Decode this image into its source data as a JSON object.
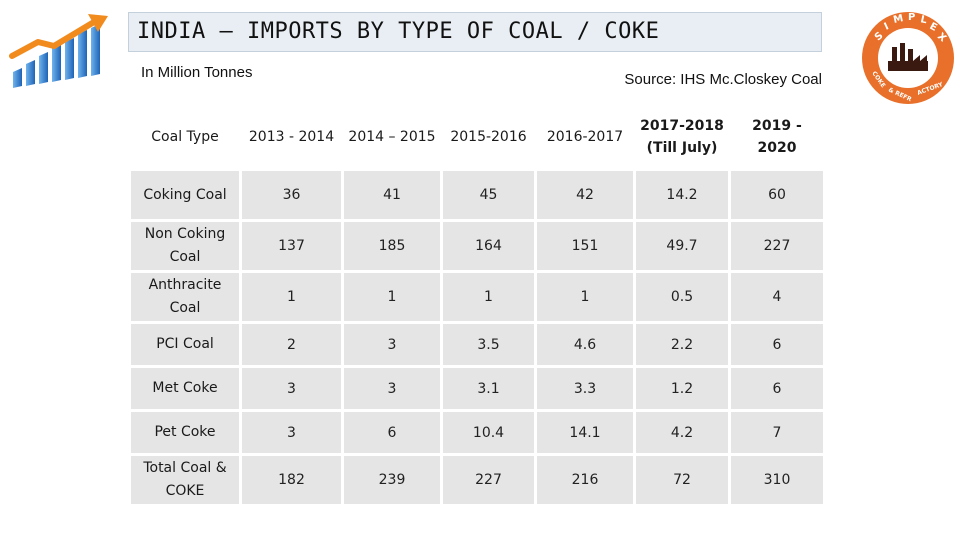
{
  "header": {
    "title": "INDIA – IMPORTS BY TYPE OF COAL / COKE",
    "unit": "In Million Tonnes",
    "source": "Source: IHS Mc.Closkey Coal"
  },
  "logo": {
    "brand_letters": "SIMPLEX",
    "tagline": "COKE & REFRACTORY",
    "color": "#e8702a"
  },
  "table": {
    "headers": [
      "Coal Type",
      "2013 - 2014",
      "2014 – 2015",
      "2015-2016",
      "2016-2017",
      "2017-2018\n(Till July)",
      "2019 - 2020"
    ],
    "rows": [
      {
        "type": "Coking Coal",
        "values": [
          "36",
          "41",
          "45",
          "42",
          "14.2",
          "60"
        ]
      },
      {
        "type": "Non Coking\nCoal",
        "values": [
          "137",
          "185",
          "164",
          "151",
          "49.7",
          "227"
        ]
      },
      {
        "type": "Anthracite\nCoal",
        "values": [
          "1",
          "1",
          "1",
          "1",
          "0.5",
          "4"
        ]
      },
      {
        "type": "PCI Coal",
        "values": [
          "2",
          "3",
          "3.5",
          "4.6",
          "2.2",
          "6"
        ]
      },
      {
        "type": "Met Coke",
        "values": [
          "3",
          "3",
          "3.1",
          "3.3",
          "1.2",
          "6"
        ]
      },
      {
        "type": "Pet Coke",
        "values": [
          "3",
          "6",
          "10.4",
          "14.1",
          "4.2",
          "7"
        ]
      },
      {
        "type": "Total Coal &\nCOKE",
        "values": [
          "182",
          "239",
          "227",
          "216",
          "72",
          "310"
        ]
      }
    ]
  },
  "colors": {
    "title_bar_bg": "#e8eef4",
    "cell_bg": "#e5e5e5",
    "logo_orange": "#e8702a",
    "bars_blue": "#2f7fd1",
    "arrow_orange": "#f28b1e"
  }
}
